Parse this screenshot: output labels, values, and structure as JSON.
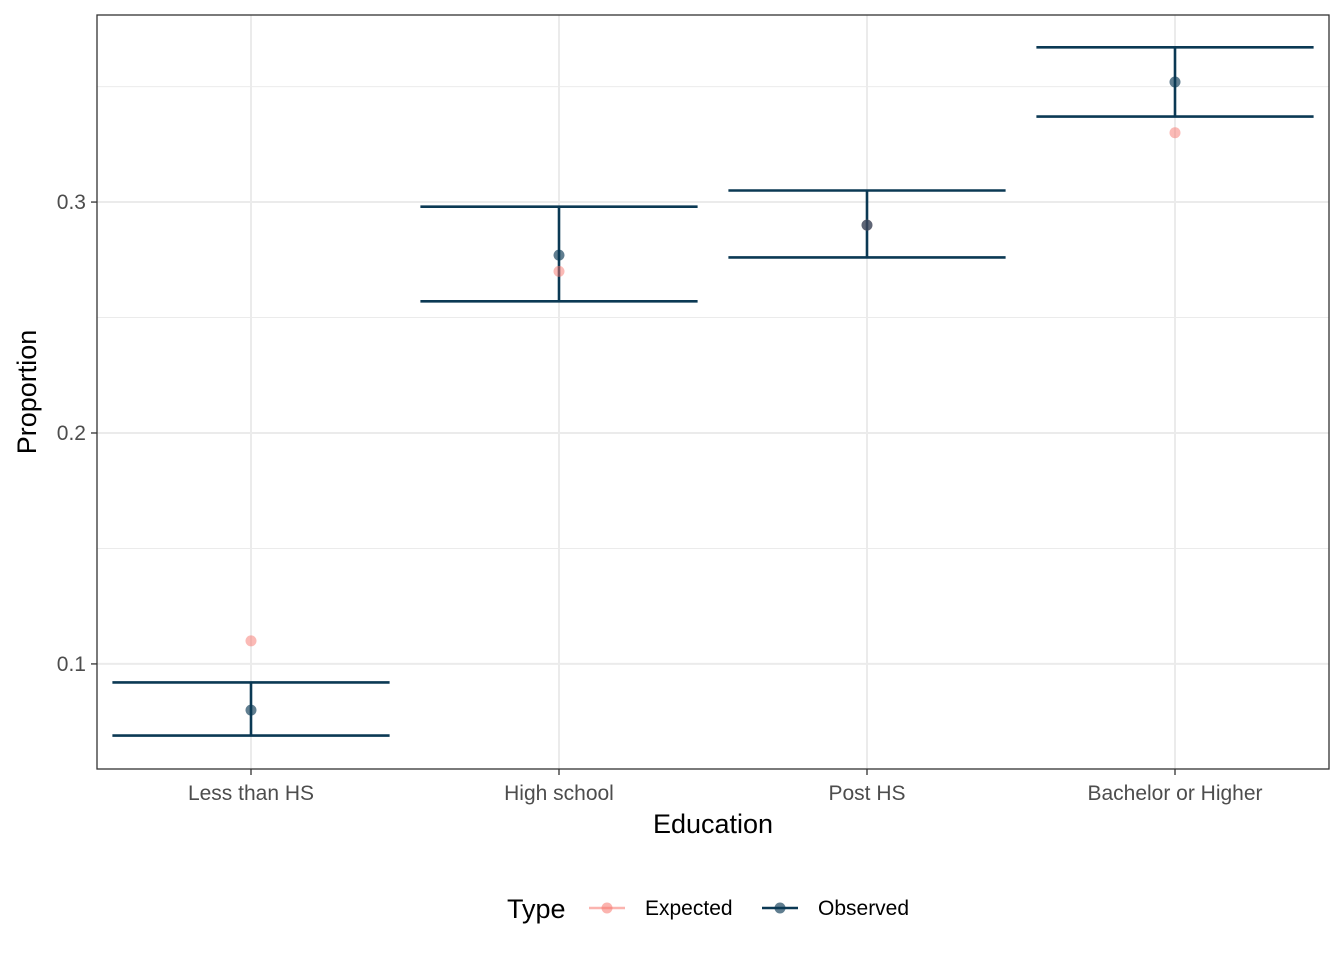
{
  "chart_data": {
    "type": "scatter",
    "xlabel": "Education",
    "ylabel": "Proportion",
    "categories": [
      "Less than HS",
      "High school",
      "Post HS",
      "Bachelor or Higher"
    ],
    "ylim": [
      0.0545,
      0.381
    ],
    "yticks": [
      0.1,
      0.2,
      0.3
    ],
    "ytick_labels": [
      "0.1",
      "0.2",
      "0.3"
    ],
    "grid": true,
    "legend": {
      "title": "Type",
      "position": "bottom",
      "entries": [
        "Expected",
        "Observed"
      ]
    },
    "series": [
      {
        "name": "Expected",
        "color": "#F8766D",
        "values": [
          0.11,
          0.27,
          0.29,
          0.33
        ]
      },
      {
        "name": "Observed",
        "color": "#0B3954",
        "values": [
          0.08,
          0.277,
          0.29,
          0.352
        ]
      }
    ],
    "error_bars": {
      "series": "Observed",
      "color": "#0B3954",
      "lower": [
        0.069,
        0.257,
        0.276,
        0.337
      ],
      "upper": [
        0.092,
        0.298,
        0.305,
        0.367
      ]
    }
  }
}
